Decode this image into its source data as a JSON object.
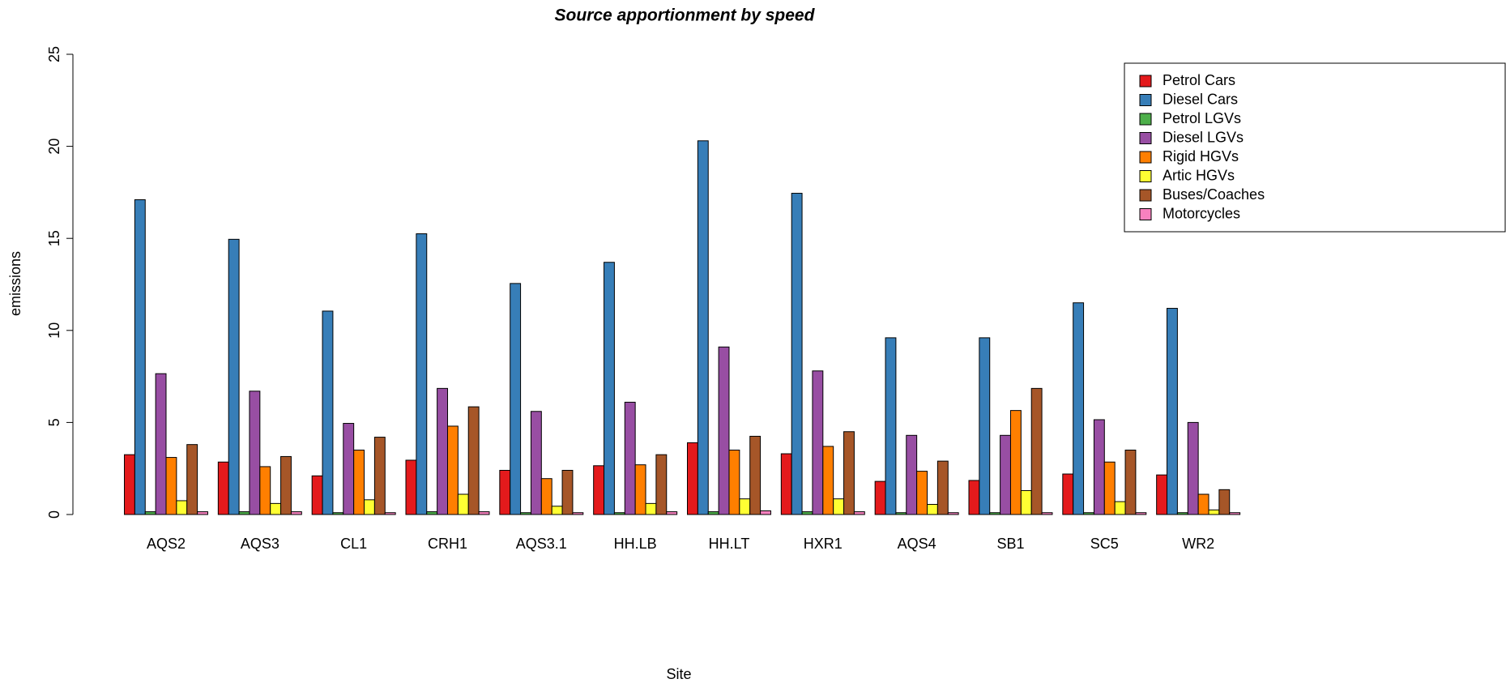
{
  "chart_data": {
    "type": "bar",
    "title": "Source apportionment by speed",
    "x_label": "Site",
    "y_label": "emissions",
    "categories": [
      "AQS2",
      "AQS3",
      "CL1",
      "CRH1",
      "AQS3.1",
      "HH.LB",
      "HH.LT",
      "HXR1",
      "AQS4",
      "SB1",
      "SC5",
      "WR2"
    ],
    "series": [
      {
        "name": "Petrol Cars",
        "color": "#E41A1C",
        "values": [
          3.25,
          2.85,
          2.1,
          2.95,
          2.4,
          2.65,
          3.9,
          3.3,
          1.8,
          1.85,
          2.2,
          2.15
        ]
      },
      {
        "name": "Diesel Cars",
        "color": "#377EB8",
        "values": [
          17.1,
          14.95,
          11.05,
          15.25,
          12.55,
          13.7,
          20.3,
          17.45,
          9.6,
          9.6,
          11.5,
          11.2
        ]
      },
      {
        "name": "Petrol LGVs",
        "color": "#4DAF4A",
        "values": [
          0.15,
          0.15,
          0.1,
          0.15,
          0.1,
          0.1,
          0.15,
          0.15,
          0.1,
          0.1,
          0.1,
          0.1
        ]
      },
      {
        "name": "Diesel LGVs",
        "color": "#984EA3",
        "values": [
          7.65,
          6.7,
          4.95,
          6.85,
          5.6,
          6.1,
          9.1,
          7.8,
          4.3,
          4.3,
          5.15,
          5.0
        ]
      },
      {
        "name": "Rigid HGVs",
        "color": "#FF7F00",
        "values": [
          3.1,
          2.6,
          3.5,
          4.8,
          1.95,
          2.7,
          3.5,
          3.7,
          2.35,
          5.65,
          2.85,
          1.1
        ]
      },
      {
        "name": "Artic HGVs",
        "color": "#FFFF33",
        "values": [
          0.75,
          0.6,
          0.8,
          1.1,
          0.45,
          0.6,
          0.85,
          0.85,
          0.55,
          1.3,
          0.7,
          0.25
        ]
      },
      {
        "name": "Buses/Coaches",
        "color": "#A65628",
        "values": [
          3.8,
          3.15,
          4.2,
          5.85,
          2.4,
          3.25,
          4.25,
          4.5,
          2.9,
          6.85,
          3.5,
          1.35
        ]
      },
      {
        "name": "Motorcycles",
        "color": "#F781BF",
        "values": [
          0.15,
          0.15,
          0.1,
          0.15,
          0.1,
          0.15,
          0.2,
          0.15,
          0.1,
          0.1,
          0.1,
          0.1
        ]
      }
    ],
    "ylim": [
      0,
      25
    ],
    "yticks": [
      0,
      5,
      10,
      15,
      20,
      25
    ],
    "legend": "top-right"
  }
}
